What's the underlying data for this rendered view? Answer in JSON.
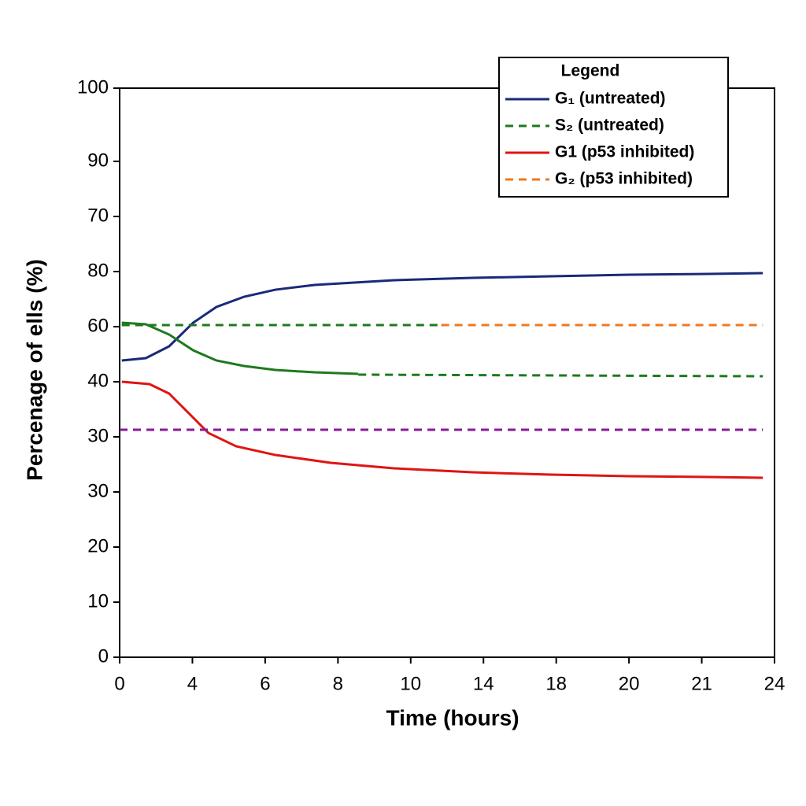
{
  "chart_data": {
    "type": "line",
    "xlabel": "Time (hours)",
    "ylabel": "Percenage of ells (%)",
    "legend_title": "Legend",
    "legend": "top-right",
    "xlim": [
      0,
      9
    ],
    "xticks": [
      0,
      {
        "value": 1,
        "label": "4"
      },
      {
        "value": 2,
        "label": "6"
      },
      {
        "value": 3,
        "label": "8"
      },
      {
        "value": 4,
        "label": "10"
      },
      {
        "value": 5,
        "label": "14"
      },
      {
        "value": 6,
        "label": "18"
      },
      {
        "value": 7,
        "label": "20"
      },
      {
        "value": 8,
        "label": "21"
      },
      {
        "value": 9,
        "label": "24"
      }
    ],
    "ylim": [
      0,
      103.29
    ],
    "yticks": [
      0,
      10,
      20,
      30,
      {
        "value": 40,
        "label": "30"
      },
      {
        "value": 50,
        "label": "40"
      },
      60,
      {
        "value": 70,
        "label": "80"
      },
      {
        "value": 80,
        "label": "70"
      },
      90,
      {
        "value": 103.29,
        "label": "100"
      }
    ],
    "series": [
      {
        "name": "G₁  (untreated)",
        "color": "#1a2a78",
        "dashed": false,
        "x": [
          0.03,
          0.36,
          0.68,
          1.01,
          1.33,
          1.71,
          2.14,
          2.68,
          3.77,
          4.85,
          5.93,
          7.01,
          8.1,
          8.84
        ],
        "values": [
          53.86,
          54.29,
          56.43,
          60.71,
          63.57,
          65.43,
          66.71,
          67.57,
          68.43,
          68.86,
          69.14,
          69.43,
          69.57,
          69.71
        ]
      },
      {
        "name": "S₂ (untreated)",
        "color": "#1e7a1e",
        "dashed": true,
        "x": [
          0.03,
          4.42
        ],
        "values": [
          60.29,
          60.29
        ]
      },
      {
        "name": "G1 (p53 inhibited)",
        "color": "#e01414",
        "dashed": false,
        "x": [
          0.03,
          0.41,
          0.68,
          0.95,
          1.22,
          1.6,
          2.14,
          2.9,
          3.77,
          4.85,
          5.93,
          7.01,
          8.1,
          8.84
        ],
        "values": [
          50,
          49.57,
          47.86,
          44.29,
          40.71,
          38.29,
          36.71,
          35.29,
          34.29,
          33.57,
          33.14,
          32.86,
          32.71,
          32.57
        ]
      },
      {
        "name": "G₂  (p53 inhibited)",
        "color": "#f07820",
        "dashed": true,
        "x": [
          4.42,
          8.84
        ],
        "values": [
          60.29,
          60.29
        ]
      },
      {
        "color": "#1e7a1e",
        "dashed": false,
        "x": [
          0.03,
          0.36,
          0.68,
          1.01,
          1.33,
          1.71,
          2.14,
          2.68,
          3.28
        ],
        "values": [
          60.71,
          60.43,
          58.57,
          55.71,
          53.86,
          52.86,
          52.14,
          51.71,
          51.43
        ]
      },
      {
        "color": "#1e7a1e",
        "dashed": true,
        "x": [
          3.28,
          8.84
        ],
        "values": [
          51.29,
          51.0
        ]
      },
      {
        "color": "#8a1a9a",
        "dashed": true,
        "x": [
          0.0,
          8.84
        ],
        "values": [
          41.29,
          41.29
        ]
      }
    ]
  }
}
